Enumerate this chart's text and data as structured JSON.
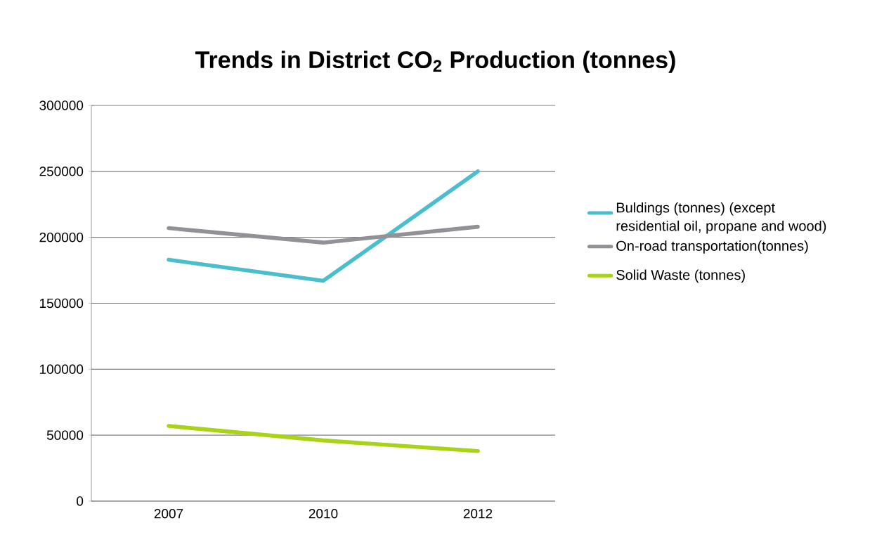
{
  "chart_data": {
    "type": "line",
    "title": "Trends in District CO$_{2}$ Production (tonnes)",
    "categories": [
      "2007",
      "2010",
      "2012"
    ],
    "series": [
      {
        "name": "Buldings (tonnes) (except residential oil, propane and wood)",
        "color": "#4bbece",
        "values": [
          183000,
          167000,
          250000
        ]
      },
      {
        "name": "On-road transportation(tonnes)",
        "color": "#929195",
        "values": [
          207000,
          196000,
          208000
        ]
      },
      {
        "name": "Solid Waste (tonnes)",
        "color": "#a8d316",
        "values": [
          57000,
          46000,
          38000
        ]
      }
    ],
    "ylim": [
      0,
      300000
    ],
    "yticks": [
      0,
      50000,
      100000,
      150000,
      200000,
      250000,
      300000
    ],
    "grid": "y",
    "legend": "right",
    "marker": "none",
    "line_style": "solid"
  }
}
